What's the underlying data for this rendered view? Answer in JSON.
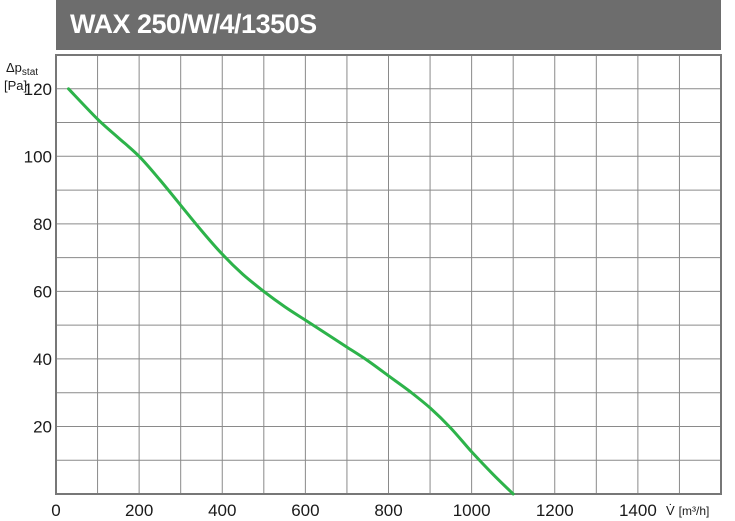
{
  "title": "WAX 250/W/4/1350S",
  "colors": {
    "title_bar": "#6d6d6d",
    "title_text": "#ffffff",
    "curve": "#2db34a",
    "grid": "#8a8a8a",
    "frame": "#777777"
  },
  "chart_data": {
    "type": "line",
    "title": "WAX 250/W/4/1350S",
    "ylabel_symbol": "Δp",
    "ylabel_subscript": "stat",
    "yunit": "[Pa]",
    "xlabel_symbol": "V̇",
    "xunit": "[m³/h]",
    "xlim": [
      0,
      1600
    ],
    "ylim": [
      0,
      130
    ],
    "x_ticks": [
      0,
      200,
      400,
      600,
      800,
      1000,
      1200,
      1400
    ],
    "y_ticks": [
      20,
      40,
      60,
      80,
      100,
      120
    ],
    "grid": true,
    "series": [
      {
        "x": [
          30,
          100,
          150,
          200,
          250,
          300,
          350,
          400,
          450,
          500,
          550,
          600,
          650,
          700,
          750,
          800,
          850,
          900,
          950,
          1000,
          1050,
          1100
        ],
        "y": [
          120,
          111,
          105.5,
          100,
          93,
          85.5,
          78,
          71,
          65,
          60,
          55.5,
          51.5,
          47.5,
          43.5,
          39.5,
          35,
          30.5,
          25.5,
          19.5,
          12.5,
          6,
          0
        ]
      }
    ]
  }
}
